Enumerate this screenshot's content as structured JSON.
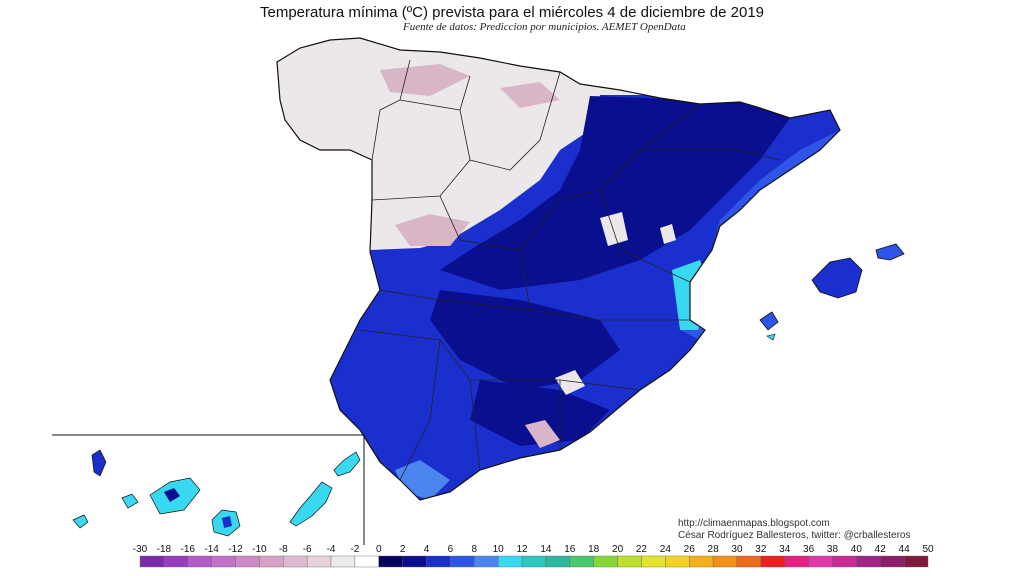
{
  "title": "Temperatura mínima (ºC) prevista para el miércoles 4 de diciembre de 2019",
  "subtitle": "Fuente de datos: Prediccion por municipios. AEMET OpenData",
  "credits": {
    "url": "http://climaenmapas.blogspot.com",
    "author": "César Rodríguez Ballesteros, twitter: @crballesteros"
  },
  "legend": {
    "labels": [
      "-30",
      "-18",
      "-16",
      "-14",
      "-12",
      "-10",
      "-8",
      "-6",
      "-4",
      "-2",
      "0",
      "2",
      "4",
      "6",
      "8",
      "10",
      "12",
      "14",
      "16",
      "18",
      "20",
      "22",
      "24",
      "26",
      "28",
      "30",
      "32",
      "34",
      "36",
      "38",
      "40",
      "42",
      "44",
      "50"
    ],
    "colors": [
      "#7a2ba8",
      "#963fbc",
      "#b15bc8",
      "#c073c6",
      "#cd8ac6",
      "#d6a2c8",
      "#dfb9cf",
      "#e7d2dc",
      "#ecebeb",
      "#ffffff",
      "#04025c",
      "#0a0f8f",
      "#1b2fcf",
      "#2f55e8",
      "#4a85f0",
      "#38d8f0",
      "#2ec7bf",
      "#2fb8a0",
      "#48c770",
      "#86d638",
      "#bce02c",
      "#e3e628",
      "#f2d31e",
      "#f3b21a",
      "#f29018",
      "#ee6a1a",
      "#ef1f1f",
      "#e81e80",
      "#df3aa8",
      "#c92a92",
      "#a02585",
      "#8a1e6a",
      "#7e1b3d"
    ],
    "color_names": [
      "purple",
      "purple",
      "magenta",
      "magenta",
      "pink",
      "pink",
      "pink",
      "light-pink",
      "light-gray",
      "white",
      "navy",
      "dark-blue",
      "blue",
      "blue",
      "light-blue",
      "cyan",
      "teal",
      "teal",
      "green",
      "green",
      "yellow-green",
      "yellow",
      "yellow",
      "orange",
      "orange",
      "orange",
      "red",
      "magenta",
      "magenta",
      "magenta",
      "purple",
      "purple",
      "maroon"
    ]
  },
  "map_colors": {
    "cold": "#ece8ea",
    "cold_high": "#d8b6c8",
    "navy": "#0a0f8f",
    "blue": "#1b2fcf",
    "mid_blue": "#2f55e8",
    "light_blue": "#4a85f0",
    "cyan": "#38d8f0",
    "border": "#222222"
  }
}
